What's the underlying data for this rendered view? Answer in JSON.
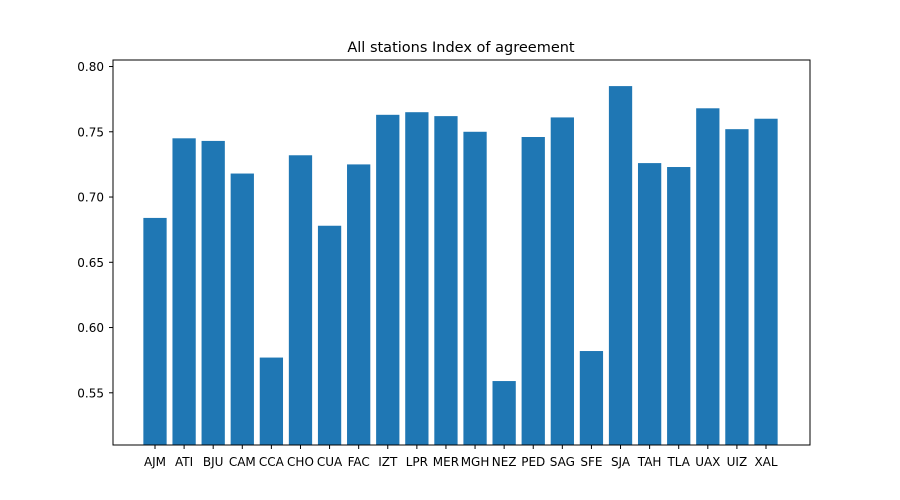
{
  "chart_data": {
    "type": "bar",
    "title": "All stations Index of agreement",
    "xlabel": "",
    "ylabel": "",
    "categories": [
      "AJM",
      "ATI",
      "BJU",
      "CAM",
      "CCA",
      "CHO",
      "CUA",
      "FAC",
      "IZT",
      "LPR",
      "MER",
      "MGH",
      "NEZ",
      "PED",
      "SAG",
      "SFE",
      "SJA",
      "TAH",
      "TLA",
      "UAX",
      "UIZ",
      "XAL"
    ],
    "values": [
      0.684,
      0.745,
      0.743,
      0.718,
      0.577,
      0.732,
      0.678,
      0.725,
      0.763,
      0.765,
      0.762,
      0.75,
      0.559,
      0.746,
      0.761,
      0.582,
      0.785,
      0.726,
      0.723,
      0.768,
      0.752,
      0.76
    ],
    "ylim": [
      0.51,
      0.805
    ],
    "yticks": [
      0.55,
      0.6,
      0.65,
      0.7,
      0.75,
      0.8
    ],
    "ytick_labels": [
      "0.55",
      "0.60",
      "0.65",
      "0.70",
      "0.75",
      "0.80"
    ],
    "grid": false,
    "legend": "none",
    "bar_color": "#1f77b4"
  }
}
